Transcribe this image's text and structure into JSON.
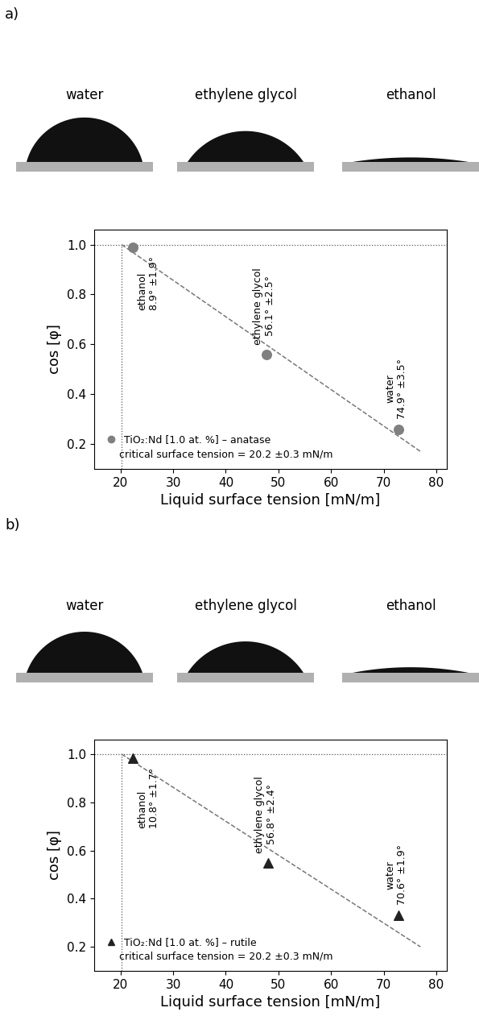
{
  "chart_data": [
    {
      "panel": "a)",
      "droplet_labels": [
        "water",
        "ethylene glycol",
        "ethanol"
      ],
      "type": "scatter",
      "xlabel": "Liquid surface tension [mN/m]",
      "ylabel": "cos [φ]",
      "xlim": [
        15,
        82
      ],
      "xticks": [
        20,
        30,
        40,
        50,
        60,
        70,
        80
      ],
      "ylim": [
        0.1,
        1.06
      ],
      "yticks": [
        0.2,
        0.4,
        0.6,
        0.8,
        1.0
      ],
      "series": [
        {
          "name": "TiO₂:Nd [1.0 at. %] – anatase",
          "color": "#808080",
          "marker": "o",
          "x": [
            22.3,
            47.7,
            72.8
          ],
          "values": [
            0.988,
            0.558,
            0.26
          ]
        }
      ],
      "point_labels": [
        {
          "name": "ethanol",
          "angle": "8.9° ±1.9°"
        },
        {
          "name": "ethylene glycol",
          "angle": "56.1° ±2.5°"
        },
        {
          "name": "water",
          "angle": "74.9° ±3.5°"
        }
      ],
      "annotation": "critical surface tension = 20.2 ±0.3 mN/m",
      "fit_line": {
        "x": [
          20.2,
          77
        ],
        "values": [
          1.0,
          0.17
        ],
        "line_style": "dashed"
      },
      "reference_lines": {
        "x": 20.2,
        "y": 1.0,
        "line_style": "dotted"
      },
      "legend": "lower left"
    },
    {
      "panel": "b)",
      "droplet_labels": [
        "water",
        "ethylene glycol",
        "ethanol"
      ],
      "type": "scatter",
      "xlabel": "Liquid surface tension [mN/m]",
      "ylabel": "cos [φ]",
      "xlim": [
        15,
        82
      ],
      "xticks": [
        20,
        30,
        40,
        50,
        60,
        70,
        80
      ],
      "ylim": [
        0.1,
        1.06
      ],
      "yticks": [
        0.2,
        0.4,
        0.6,
        0.8,
        1.0
      ],
      "series": [
        {
          "name": "TiO₂:Nd [1.0 at. %] – rutile",
          "color": "#222222",
          "marker": "^",
          "x": [
            22.3,
            48.0,
            72.8
          ],
          "values": [
            0.982,
            0.548,
            0.332
          ]
        }
      ],
      "point_labels": [
        {
          "name": "ethanol",
          "angle": "10.8° ±1.7°"
        },
        {
          "name": "ethylene glycol",
          "angle": "56.8° ±2.4°"
        },
        {
          "name": "water",
          "angle": "70.6° ±1.9°"
        }
      ],
      "annotation": "critical surface tension = 20.2 ±0.3 mN/m",
      "fit_line": {
        "x": [
          20.2,
          77
        ],
        "values": [
          1.0,
          0.2
        ],
        "line_style": "dashed"
      },
      "reference_lines": {
        "x": 20.2,
        "y": 1.0,
        "line_style": "dotted"
      },
      "legend": "lower left"
    }
  ]
}
